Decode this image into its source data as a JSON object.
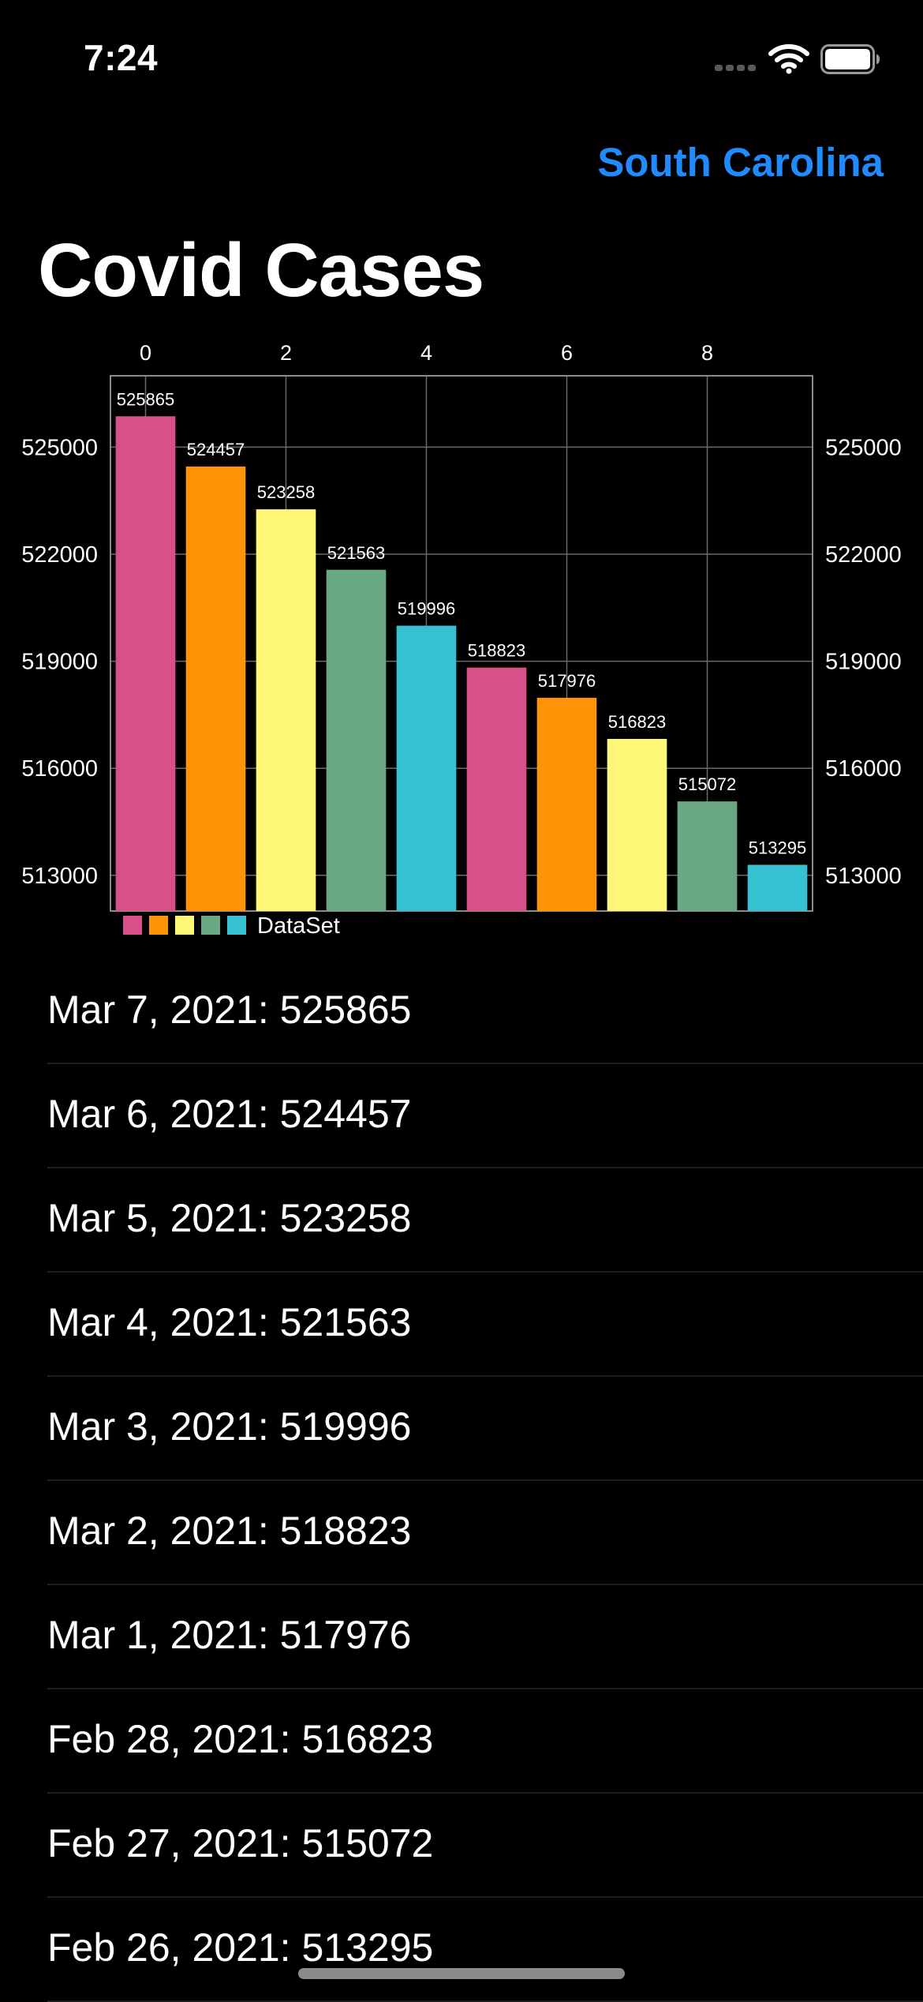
{
  "status_bar": {
    "time": "7:24",
    "icons": [
      "signal-icon",
      "wifi-icon",
      "battery-icon"
    ]
  },
  "nav": {
    "state_button_label": "South Carolina",
    "accent_color": "#1f8bff"
  },
  "page": {
    "title": "Covid Cases"
  },
  "chart_data": {
    "type": "bar",
    "categories": [
      0,
      1,
      2,
      3,
      4,
      5,
      6,
      7,
      8,
      9
    ],
    "x_ticks": [
      "0",
      "2",
      "4",
      "6",
      "8"
    ],
    "y_ticks": [
      "525000",
      "522000",
      "519000",
      "516000",
      "513000"
    ],
    "y_tick_values": [
      525000,
      522000,
      519000,
      516000,
      513000
    ],
    "ylim": [
      512000,
      527000
    ],
    "series": [
      {
        "name": "DataSet",
        "values": [
          525865,
          524457,
          523258,
          521563,
          519996,
          518823,
          517976,
          516823,
          515072,
          513295
        ]
      }
    ],
    "bar_colors": [
      "#d94f89",
      "#ff9408",
      "#fff778",
      "#6aa783",
      "#36c0d2"
    ],
    "legend_label": "DataSet",
    "legend_position": "bottom-left",
    "grid": true
  },
  "list": {
    "items": [
      "Mar 7, 2021: 525865",
      "Mar 6, 2021: 524457",
      "Mar 5, 2021: 523258",
      "Mar 4, 2021: 521563",
      "Mar 3, 2021: 519996",
      "Mar 2, 2021: 518823",
      "Mar 1, 2021: 517976",
      "Feb 28, 2021: 516823",
      "Feb 27, 2021: 515072",
      "Feb 26, 2021: 513295"
    ]
  }
}
